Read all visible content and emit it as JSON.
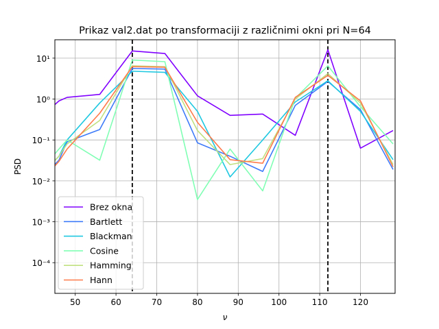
{
  "chart_data": {
    "type": "line",
    "title": "Prikaz val2.dat po transformaciji z različnimi okni pri N=64",
    "xlabel": "ν",
    "ylabel": "PSD",
    "xlim": [
      45,
      128.5
    ],
    "ylim_log10": [
      -4.75,
      1.45
    ],
    "yscale": "log",
    "grid": true,
    "legend_position": "lower-left",
    "x_ticks": [
      50,
      60,
      70,
      80,
      90,
      100,
      110,
      120
    ],
    "x_tick_labels": [
      "50",
      "60",
      "70",
      "80",
      "90",
      "100",
      "110",
      "120"
    ],
    "y_ticks": [
      0.0001,
      0.001,
      0.01,
      0.1,
      1,
      10
    ],
    "y_tick_labels": [
      "10⁻⁴",
      "10⁻³",
      "10⁻²",
      "10⁻¹",
      "10⁰",
      "10¹"
    ],
    "vlines": [
      64,
      112
    ],
    "series": [
      {
        "name": "Brez okna",
        "color": "#8000ff",
        "x": [
          44,
          46,
          48,
          56,
          64,
          72,
          80,
          88,
          96,
          104,
          112,
          120,
          128
        ],
        "y": [
          0.6,
          0.9,
          1.1,
          1.3,
          15,
          13,
          1.2,
          0.4,
          0.43,
          0.13,
          16,
          0.063,
          0.17
        ]
      },
      {
        "name": "Bartlett",
        "color": "#3e7bf9",
        "x": [
          44,
          46,
          48,
          56,
          64,
          72,
          80,
          88,
          96,
          104,
          112,
          120,
          128
        ],
        "y": [
          0.02,
          0.032,
          0.09,
          0.18,
          5.6,
          5.4,
          0.085,
          0.04,
          0.017,
          0.7,
          2.7,
          0.55,
          0.019
        ]
      },
      {
        "name": "Blackman",
        "color": "#1ec8e0",
        "x": [
          44,
          46,
          48,
          56,
          64,
          72,
          80,
          88,
          96,
          104,
          112,
          120,
          128
        ],
        "y": [
          0.025,
          0.04,
          0.1,
          0.8,
          4.8,
          4.5,
          0.5,
          0.0125,
          0.1,
          0.85,
          2.8,
          0.5,
          0.033
        ]
      },
      {
        "name": "Cosine",
        "color": "#80ffb4",
        "x": [
          44,
          46,
          48,
          56,
          64,
          72,
          80,
          88,
          96,
          104,
          112,
          120,
          128
        ],
        "y": [
          0.035,
          0.06,
          0.1,
          0.032,
          9,
          8.2,
          0.0035,
          0.06,
          0.0057,
          1.05,
          6.5,
          0.65,
          0.08
        ]
      },
      {
        "name": "Hamming",
        "color": "#c0e080",
        "x": [
          44,
          46,
          48,
          56,
          64,
          72,
          80,
          88,
          96,
          104,
          112,
          120,
          128
        ],
        "y": [
          0.025,
          0.04,
          0.08,
          0.3,
          6.5,
          6.2,
          0.17,
          0.025,
          0.035,
          1.0,
          4.2,
          0.8,
          0.025
        ]
      },
      {
        "name": "Hann",
        "color": "#ff7a4a",
        "x": [
          44,
          46,
          48,
          56,
          64,
          72,
          80,
          88,
          96,
          104,
          112,
          120,
          128
        ],
        "y": [
          0.018,
          0.03,
          0.06,
          0.45,
          6.2,
          6.0,
          0.27,
          0.033,
          0.027,
          1.1,
          3.8,
          0.9,
          0.022
        ]
      }
    ]
  }
}
